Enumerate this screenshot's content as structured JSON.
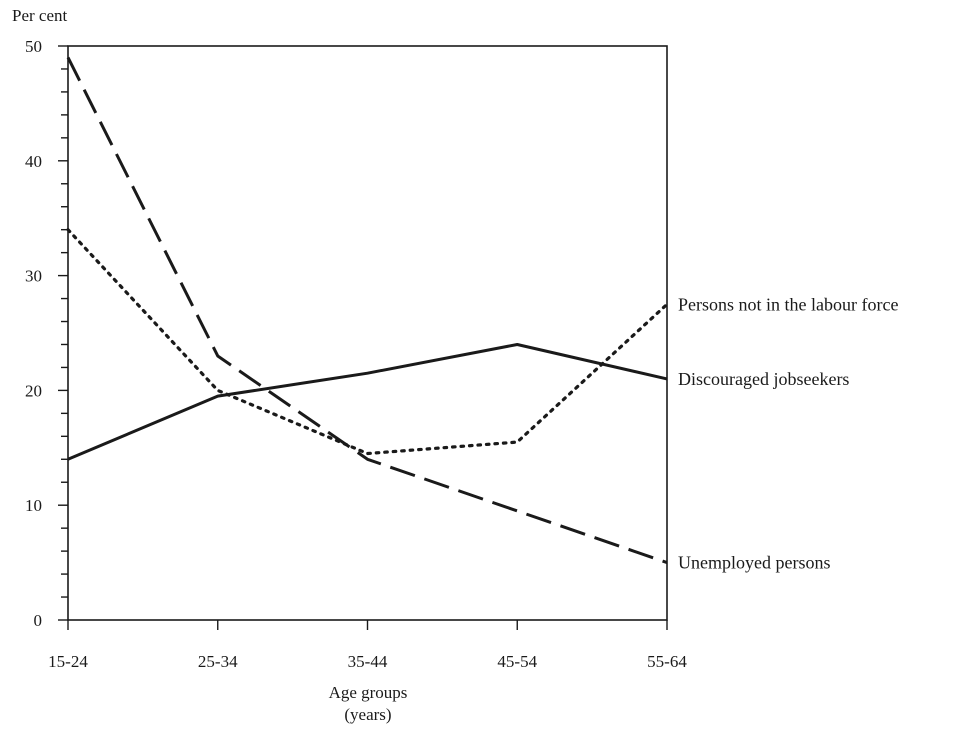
{
  "chart_data": {
    "type": "line",
    "title": "",
    "ylabel": "Per cent",
    "xlabel_lines": [
      "Age groups",
      "(years)"
    ],
    "categories": [
      "15-24",
      "25-34",
      "35-44",
      "45-54",
      "55-64"
    ],
    "ylim": [
      0,
      50
    ],
    "y_major_ticks": [
      0,
      10,
      20,
      30,
      40,
      50
    ],
    "y_minor_step": 2,
    "grid": false,
    "legend": "labels at right end of each line",
    "series": [
      {
        "name": "Persons not in the labour force",
        "style": "dotted",
        "values": [
          34,
          20,
          14.5,
          15.5,
          27.5
        ]
      },
      {
        "name": "Discouraged jobseekers",
        "style": "solid",
        "values": [
          14,
          19.5,
          21.5,
          24,
          21
        ]
      },
      {
        "name": "Unemployed persons",
        "style": "dashed",
        "values": [
          49,
          23,
          14,
          9.5,
          5
        ]
      }
    ],
    "colors": {
      "line": "#1a1a1a",
      "background": "#ffffff"
    }
  }
}
